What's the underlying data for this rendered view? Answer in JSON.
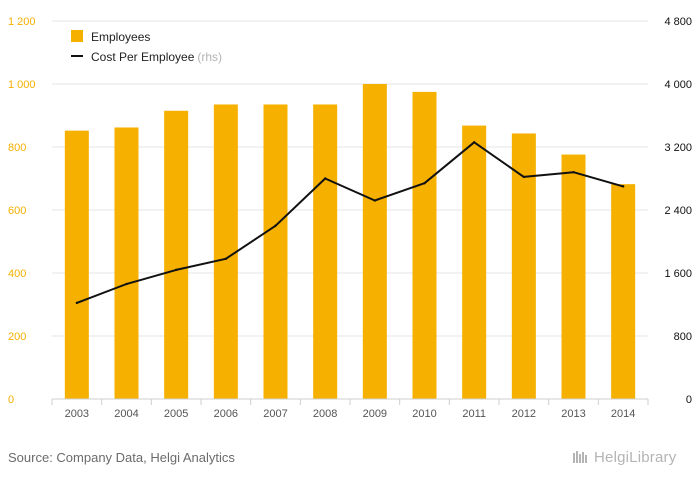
{
  "chart_data": {
    "type": "bar+line",
    "categories": [
      "2003",
      "2004",
      "2005",
      "2006",
      "2007",
      "2008",
      "2009",
      "2010",
      "2011",
      "2012",
      "2013",
      "2014"
    ],
    "series": [
      {
        "name": "Employees",
        "type": "bar",
        "axis": "left",
        "color": "#f5b000",
        "values": [
          852,
          862,
          915,
          935,
          935,
          935,
          1000,
          975,
          868,
          843,
          776,
          682
        ]
      },
      {
        "name": "Cost Per Employee",
        "suffix": "(rhs)",
        "type": "line",
        "axis": "right",
        "color": "#111111",
        "values": [
          1220,
          1460,
          1640,
          1780,
          2200,
          2800,
          2520,
          2740,
          3260,
          2820,
          2880,
          2700
        ]
      }
    ],
    "y_left": {
      "min": 0,
      "max": 1200,
      "ticks": [
        0,
        200,
        400,
        600,
        800,
        1000,
        1200
      ],
      "tick_labels": [
        "0",
        "200",
        "400",
        "600",
        "800",
        "1 000",
        "1 200"
      ],
      "label_color": "#f5b000"
    },
    "y_right": {
      "min": 0,
      "max": 4800,
      "ticks": [
        0,
        800,
        1600,
        2400,
        3200,
        4000,
        4800
      ],
      "tick_labels": [
        "0",
        "800",
        "1 600",
        "2 400",
        "3 200",
        "4 000",
        "4 800"
      ],
      "label_color": "#111111"
    },
    "grid": true,
    "legend_position": "top-left",
    "title": "",
    "xlabel": "",
    "ylabel": ""
  },
  "footer": {
    "source": "Source: Company Data, Helgi Analytics",
    "brand_name": "HelgiLibrary"
  }
}
